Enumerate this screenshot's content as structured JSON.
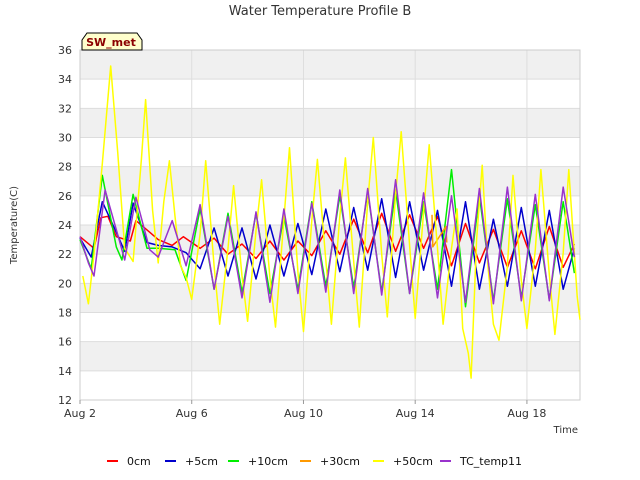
{
  "chart_data": {
    "type": "line",
    "title": "Water Temperature Profile B",
    "xlabel": "Time",
    "ylabel": "Temperature(C)",
    "badge": "SW_met",
    "xlim": [
      2,
      19.9
    ],
    "ylim": [
      12,
      36
    ],
    "x_ticks": [
      {
        "value": 2,
        "label": "Aug 2"
      },
      {
        "value": 6,
        "label": "Aug 6"
      },
      {
        "value": 10,
        "label": "Aug 10"
      },
      {
        "value": 14,
        "label": "Aug 14"
      },
      {
        "value": 18,
        "label": "Aug 18"
      }
    ],
    "y_ticks": [
      12,
      14,
      16,
      18,
      20,
      22,
      24,
      26,
      28,
      30,
      32,
      34,
      36
    ],
    "grid": true,
    "legend_position": "bottom",
    "x_unit": "day of August",
    "series": [
      {
        "name": "0cm",
        "color": "#ff0000",
        "points": [
          [
            2.0,
            23.2
          ],
          [
            2.5,
            22.4
          ],
          [
            2.75,
            24.5
          ],
          [
            3.0,
            24.6
          ],
          [
            3.3,
            23.2
          ],
          [
            3.8,
            22.9
          ],
          [
            4.0,
            24.3
          ],
          [
            4.5,
            23.5
          ],
          [
            4.8,
            23.0
          ],
          [
            5.3,
            22.6
          ],
          [
            5.7,
            23.2
          ],
          [
            6.3,
            22.4
          ],
          [
            6.8,
            23.1
          ],
          [
            7.3,
            22.0
          ],
          [
            7.8,
            22.7
          ],
          [
            8.3,
            21.7
          ],
          [
            8.8,
            22.9
          ],
          [
            9.3,
            21.6
          ],
          [
            9.8,
            22.9
          ],
          [
            10.3,
            21.9
          ],
          [
            10.8,
            23.6
          ],
          [
            11.3,
            22.0
          ],
          [
            11.8,
            24.4
          ],
          [
            12.3,
            22.1
          ],
          [
            12.8,
            24.8
          ],
          [
            13.3,
            22.2
          ],
          [
            13.8,
            24.7
          ],
          [
            14.3,
            22.4
          ],
          [
            14.8,
            24.6
          ],
          [
            15.3,
            21.2
          ],
          [
            15.8,
            24.1
          ],
          [
            16.3,
            21.4
          ],
          [
            16.8,
            23.7
          ],
          [
            17.3,
            21.1
          ],
          [
            17.8,
            23.6
          ],
          [
            18.3,
            21.0
          ],
          [
            18.8,
            23.9
          ],
          [
            19.3,
            21.1
          ],
          [
            19.7,
            22.7
          ]
        ]
      },
      {
        "name": "+5cm",
        "color": "#0000cc",
        "points": [
          [
            2.0,
            23.1
          ],
          [
            2.4,
            21.8
          ],
          [
            2.8,
            25.6
          ],
          [
            3.3,
            23.5
          ],
          [
            3.6,
            22.2
          ],
          [
            3.9,
            25.5
          ],
          [
            4.4,
            22.8
          ],
          [
            4.8,
            22.6
          ],
          [
            5.3,
            22.5
          ],
          [
            5.8,
            22.1
          ],
          [
            6.3,
            21.0
          ],
          [
            6.8,
            23.8
          ],
          [
            7.3,
            20.5
          ],
          [
            7.8,
            23.8
          ],
          [
            8.3,
            20.3
          ],
          [
            8.8,
            24.0
          ],
          [
            9.3,
            20.5
          ],
          [
            9.8,
            24.1
          ],
          [
            10.3,
            20.6
          ],
          [
            10.8,
            25.1
          ],
          [
            11.3,
            20.8
          ],
          [
            11.8,
            25.2
          ],
          [
            12.3,
            20.9
          ],
          [
            12.8,
            25.8
          ],
          [
            13.3,
            20.4
          ],
          [
            13.8,
            25.6
          ],
          [
            14.3,
            20.9
          ],
          [
            14.8,
            25.0
          ],
          [
            15.3,
            19.8
          ],
          [
            15.8,
            25.6
          ],
          [
            16.3,
            19.6
          ],
          [
            16.8,
            24.4
          ],
          [
            17.3,
            19.8
          ],
          [
            17.8,
            25.2
          ],
          [
            18.3,
            19.8
          ],
          [
            18.8,
            25.0
          ],
          [
            19.3,
            19.6
          ],
          [
            19.7,
            22.4
          ]
        ]
      },
      {
        "name": "+10cm",
        "color": "#00ee00",
        "points": [
          [
            2.0,
            23.0
          ],
          [
            2.4,
            21.0
          ],
          [
            2.8,
            27.4
          ],
          [
            3.3,
            22.5
          ],
          [
            3.5,
            21.6
          ],
          [
            3.9,
            26.1
          ],
          [
            4.4,
            22.4
          ],
          [
            4.8,
            22.4
          ],
          [
            5.4,
            22.3
          ],
          [
            5.8,
            20.2
          ],
          [
            6.3,
            25.1
          ],
          [
            6.8,
            19.6
          ],
          [
            7.3,
            24.8
          ],
          [
            7.8,
            19.4
          ],
          [
            8.3,
            24.8
          ],
          [
            8.8,
            19.3
          ],
          [
            9.3,
            24.6
          ],
          [
            9.8,
            19.6
          ],
          [
            10.3,
            25.6
          ],
          [
            10.8,
            19.8
          ],
          [
            11.3,
            26.0
          ],
          [
            11.8,
            19.7
          ],
          [
            12.3,
            26.3
          ],
          [
            12.8,
            19.4
          ],
          [
            13.3,
            26.4
          ],
          [
            13.8,
            19.3
          ],
          [
            14.3,
            25.6
          ],
          [
            14.8,
            19.6
          ],
          [
            15.3,
            27.8
          ],
          [
            15.8,
            18.4
          ],
          [
            16.3,
            26.0
          ],
          [
            16.8,
            18.8
          ],
          [
            17.3,
            25.8
          ],
          [
            17.8,
            19.0
          ],
          [
            18.3,
            25.4
          ],
          [
            18.8,
            18.9
          ],
          [
            19.3,
            25.6
          ],
          [
            19.7,
            20.7
          ]
        ]
      },
      {
        "name": "+30cm",
        "color": "#ff9900",
        "points": [
          [
            14.6,
            24.7
          ],
          [
            14.63,
            22.5
          ],
          [
            15.1,
            23.9
          ],
          [
            15.13,
            22.8
          ]
        ]
      },
      {
        "name": "+50cm",
        "color": "#ffff00",
        "points": [
          [
            2.1,
            20.5
          ],
          [
            2.3,
            18.6
          ],
          [
            2.5,
            22.0
          ],
          [
            2.8,
            28.2
          ],
          [
            3.1,
            34.9
          ],
          [
            3.35,
            29.0
          ],
          [
            3.6,
            22.4
          ],
          [
            3.9,
            21.5
          ],
          [
            4.2,
            28.6
          ],
          [
            4.35,
            32.6
          ],
          [
            4.6,
            25.0
          ],
          [
            4.8,
            21.4
          ],
          [
            5.0,
            25.6
          ],
          [
            5.2,
            28.4
          ],
          [
            5.4,
            24.6
          ],
          [
            5.6,
            21.2
          ],
          [
            5.8,
            20.4
          ],
          [
            6.0,
            18.9
          ],
          [
            6.3,
            23.4
          ],
          [
            6.5,
            28.4
          ],
          [
            6.8,
            21.2
          ],
          [
            7.0,
            17.2
          ],
          [
            7.3,
            22.4
          ],
          [
            7.5,
            26.7
          ],
          [
            7.8,
            20.5
          ],
          [
            8.0,
            17.4
          ],
          [
            8.3,
            23.6
          ],
          [
            8.5,
            27.1
          ],
          [
            8.8,
            20.4
          ],
          [
            9.0,
            17.0
          ],
          [
            9.3,
            24.4
          ],
          [
            9.5,
            29.3
          ],
          [
            9.8,
            20.8
          ],
          [
            10.0,
            16.7
          ],
          [
            10.3,
            24.3
          ],
          [
            10.5,
            28.5
          ],
          [
            10.8,
            21.6
          ],
          [
            11.0,
            17.2
          ],
          [
            11.3,
            24.6
          ],
          [
            11.5,
            28.6
          ],
          [
            11.8,
            21.5
          ],
          [
            12.0,
            17.0
          ],
          [
            12.3,
            25.6
          ],
          [
            12.5,
            30.0
          ],
          [
            12.8,
            22.0
          ],
          [
            13.0,
            17.7
          ],
          [
            13.3,
            26.1
          ],
          [
            13.5,
            30.4
          ],
          [
            13.8,
            22.6
          ],
          [
            14.0,
            17.6
          ],
          [
            14.3,
            24.9
          ],
          [
            14.5,
            29.5
          ],
          [
            14.8,
            22.4
          ],
          [
            15.0,
            17.2
          ],
          [
            15.3,
            22.4
          ],
          [
            15.5,
            25.1
          ],
          [
            15.7,
            16.9
          ],
          [
            15.9,
            15.2
          ],
          [
            16.0,
            13.5
          ],
          [
            16.2,
            23.0
          ],
          [
            16.4,
            28.1
          ],
          [
            16.6,
            21.3
          ],
          [
            16.8,
            17.2
          ],
          [
            17.0,
            16.1
          ],
          [
            17.3,
            21.2
          ],
          [
            17.5,
            27.4
          ],
          [
            17.8,
            20.2
          ],
          [
            18.0,
            16.9
          ],
          [
            18.3,
            22.3
          ],
          [
            18.5,
            27.8
          ],
          [
            18.8,
            20.6
          ],
          [
            19.0,
            16.5
          ],
          [
            19.3,
            22.1
          ],
          [
            19.5,
            27.8
          ],
          [
            19.8,
            19.1
          ],
          [
            19.9,
            17.5
          ]
        ]
      },
      {
        "name": "TC_temp11",
        "color": "#9933cc",
        "points": [
          [
            2.0,
            23.2
          ],
          [
            2.3,
            21.4
          ],
          [
            2.5,
            20.5
          ],
          [
            2.9,
            26.4
          ],
          [
            3.4,
            23.0
          ],
          [
            3.6,
            21.6
          ],
          [
            4.0,
            25.9
          ],
          [
            4.5,
            22.3
          ],
          [
            4.8,
            21.8
          ],
          [
            5.3,
            24.3
          ],
          [
            5.8,
            21.2
          ],
          [
            6.3,
            25.4
          ],
          [
            6.8,
            19.6
          ],
          [
            7.3,
            24.6
          ],
          [
            7.8,
            19.0
          ],
          [
            8.3,
            24.9
          ],
          [
            8.8,
            18.7
          ],
          [
            9.3,
            25.1
          ],
          [
            9.8,
            19.3
          ],
          [
            10.3,
            25.5
          ],
          [
            10.8,
            19.4
          ],
          [
            11.3,
            26.4
          ],
          [
            11.8,
            19.3
          ],
          [
            12.3,
            26.5
          ],
          [
            12.8,
            19.2
          ],
          [
            13.3,
            27.1
          ],
          [
            13.8,
            19.3
          ],
          [
            14.3,
            26.2
          ],
          [
            14.8,
            19.0
          ],
          [
            15.3,
            26.0
          ],
          [
            15.8,
            18.7
          ],
          [
            16.3,
            26.5
          ],
          [
            16.8,
            18.6
          ],
          [
            17.3,
            26.6
          ],
          [
            17.8,
            18.8
          ],
          [
            18.3,
            26.1
          ],
          [
            18.8,
            18.8
          ],
          [
            19.3,
            26.6
          ],
          [
            19.7,
            21.8
          ]
        ]
      }
    ]
  }
}
